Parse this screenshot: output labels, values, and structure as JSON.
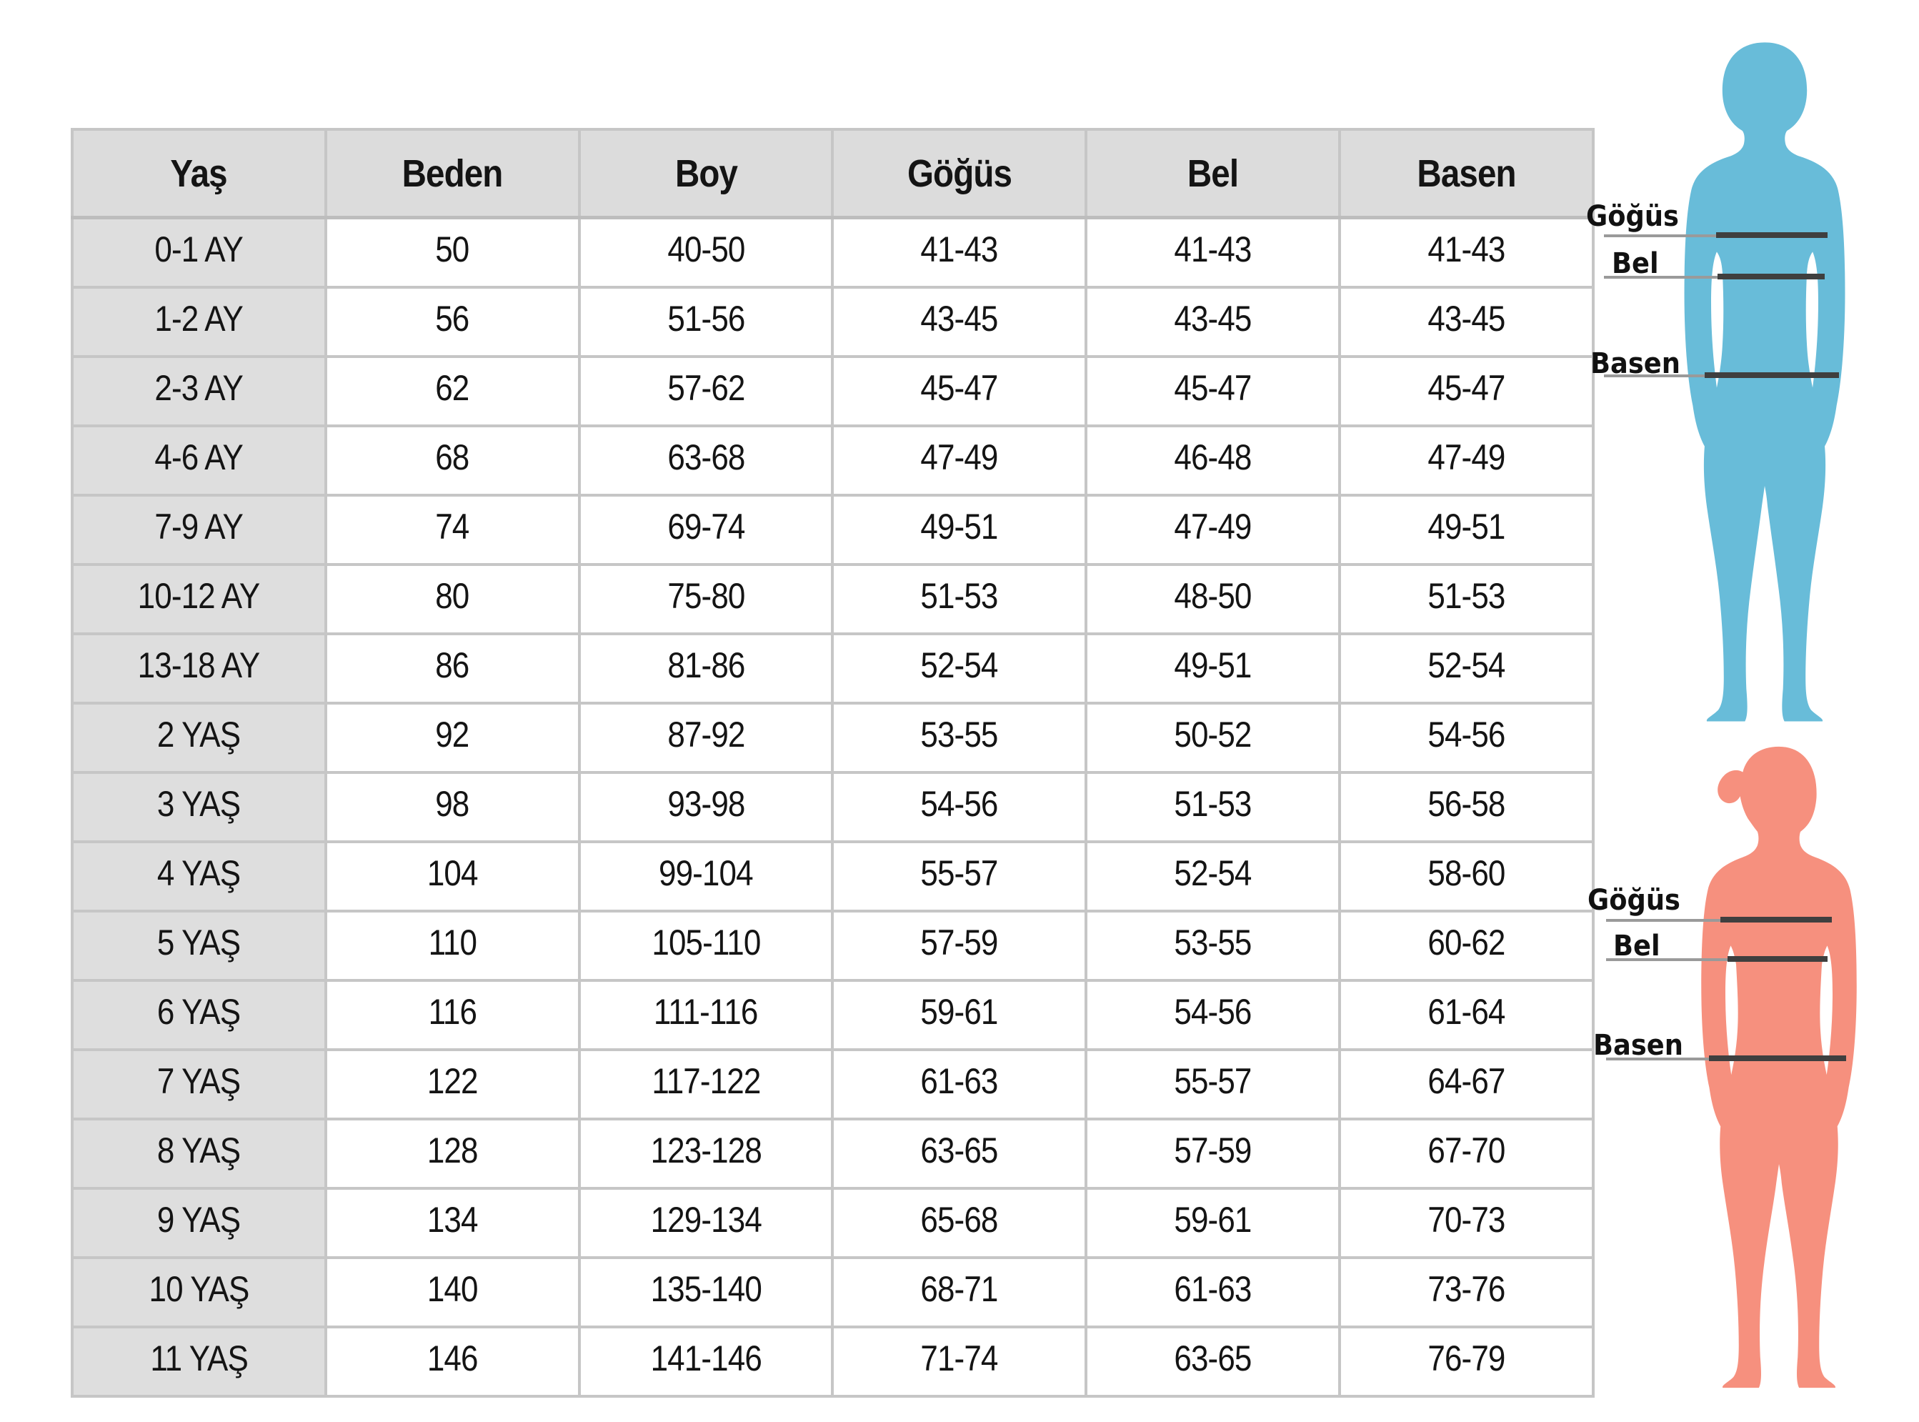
{
  "chart_data": {
    "type": "table",
    "columns": [
      "Yaş",
      "Beden",
      "Boy",
      "Göğüs",
      "Bel",
      "Basen"
    ],
    "rows": [
      [
        "0-1 AY",
        "50",
        "40-50",
        "41-43",
        "41-43",
        "41-43"
      ],
      [
        "1-2 AY",
        "56",
        "51-56",
        "43-45",
        "43-45",
        "43-45"
      ],
      [
        "2-3 AY",
        "62",
        "57-62",
        "45-47",
        "45-47",
        "45-47"
      ],
      [
        "4-6 AY",
        "68",
        "63-68",
        "47-49",
        "46-48",
        "47-49"
      ],
      [
        "7-9 AY",
        "74",
        "69-74",
        "49-51",
        "47-49",
        "49-51"
      ],
      [
        "10-12 AY",
        "80",
        "75-80",
        "51-53",
        "48-50",
        "51-53"
      ],
      [
        "13-18 AY",
        "86",
        "81-86",
        "52-54",
        "49-51",
        "52-54"
      ],
      [
        "2 YAŞ",
        "92",
        "87-92",
        "53-55",
        "50-52",
        "54-56"
      ],
      [
        "3 YAŞ",
        "98",
        "93-98",
        "54-56",
        "51-53",
        "56-58"
      ],
      [
        "4 YAŞ",
        "104",
        "99-104",
        "55-57",
        "52-54",
        "58-60"
      ],
      [
        "5 YAŞ",
        "110",
        "105-110",
        "57-59",
        "53-55",
        "60-62"
      ],
      [
        "6 YAŞ",
        "116",
        "111-116",
        "59-61",
        "54-56",
        "61-64"
      ],
      [
        "7 YAŞ",
        "122",
        "117-122",
        "61-63",
        "55-57",
        "64-67"
      ],
      [
        "8 YAŞ",
        "128",
        "123-128",
        "63-65",
        "57-59",
        "67-70"
      ],
      [
        "9 YAŞ",
        "134",
        "129-134",
        "65-68",
        "59-61",
        "70-73"
      ],
      [
        "10 YAŞ",
        "140",
        "135-140",
        "68-71",
        "61-63",
        "73-76"
      ],
      [
        "11 YAŞ",
        "146",
        "141-146",
        "71-74",
        "63-65",
        "76-79"
      ]
    ]
  },
  "figures": {
    "boy": {
      "color": "#68bcd9",
      "measures": [
        {
          "label": "Göğüs"
        },
        {
          "label": "Bel"
        },
        {
          "label": "Basen"
        }
      ]
    },
    "girl": {
      "color": "#f6907e",
      "measures": [
        {
          "label": "Göğüs"
        },
        {
          "label": "Bel"
        },
        {
          "label": "Basen"
        }
      ]
    }
  },
  "colors": {
    "header_bg": "#dcdcdc",
    "age_column_bg": "#dedede",
    "grid_border": "#c6c6c6",
    "measure_line_thick": "#3f3f3f",
    "measure_line_thin": "#9a9a9a",
    "boy_silhouette": "#68bcd9",
    "girl_silhouette": "#f6907e"
  }
}
